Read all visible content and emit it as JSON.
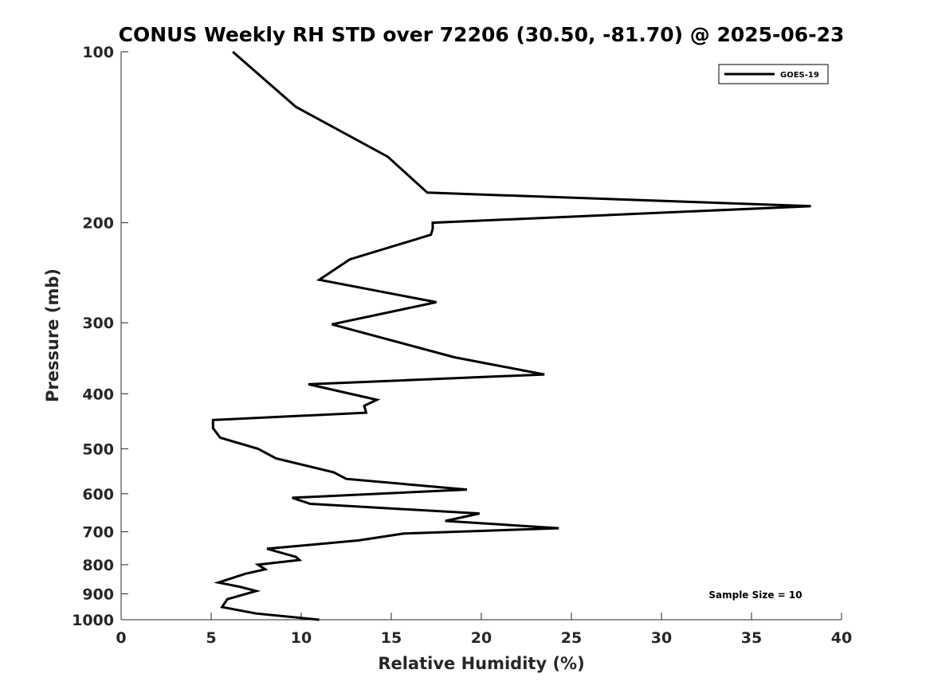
{
  "chart_data": {
    "type": "line",
    "title": "CONUS Weekly RH STD over 72206 (30.50, -81.70) @ 2025-06-23",
    "xlabel": "Relative Humidity (%)",
    "ylabel": "Pressure (mb)",
    "xlim": [
      0,
      40
    ],
    "ylim": [
      100,
      1000
    ],
    "y_scale": "log",
    "y_direction": "reversed",
    "grid": false,
    "x_ticks": [
      "0",
      "5",
      "10",
      "15",
      "20",
      "25",
      "30",
      "35",
      "40"
    ],
    "y_ticks": [
      "100",
      "200",
      "300",
      "400",
      "500",
      "600",
      "700",
      "800",
      "900",
      "1000"
    ],
    "x_tick_values": [
      0,
      5,
      10,
      15,
      20,
      25,
      30,
      35,
      40
    ],
    "y_tick_values": [
      100,
      200,
      300,
      400,
      500,
      600,
      700,
      800,
      900,
      1000
    ],
    "legend": {
      "position": "top-right",
      "entries": [
        "GOES-19"
      ]
    },
    "annotation": "Sample Size = 10",
    "line_color": "#000000",
    "series": [
      {
        "name": "GOES-19",
        "x": [
          6.2,
          9.7,
          14.8,
          17.0,
          38.3,
          17.3,
          17.3,
          17.2,
          12.7,
          11.0,
          17.5,
          11.7,
          18.5,
          23.5,
          10.4,
          14.2,
          13.5,
          13.6,
          5.1,
          5.1,
          5.5,
          7.6,
          8.6,
          11.8,
          12.5,
          19.2,
          9.5,
          10.5,
          19.9,
          18.0,
          24.3,
          15.7,
          13.2,
          8.1,
          9.7,
          9.9,
          7.6,
          8.0,
          6.9,
          5.4,
          6.6,
          7.5,
          5.9,
          5.6,
          7.5,
          11.0
        ],
        "y": [
          100,
          125,
          153,
          177,
          187,
          200,
          205,
          210,
          232,
          252,
          276,
          302,
          345,
          370,
          385,
          410,
          420,
          432,
          445,
          460,
          478,
          500,
          520,
          550,
          565,
          590,
          610,
          625,
          650,
          670,
          690,
          705,
          725,
          750,
          775,
          785,
          800,
          815,
          830,
          860,
          875,
          890,
          920,
          950,
          975,
          1000
        ]
      }
    ]
  }
}
